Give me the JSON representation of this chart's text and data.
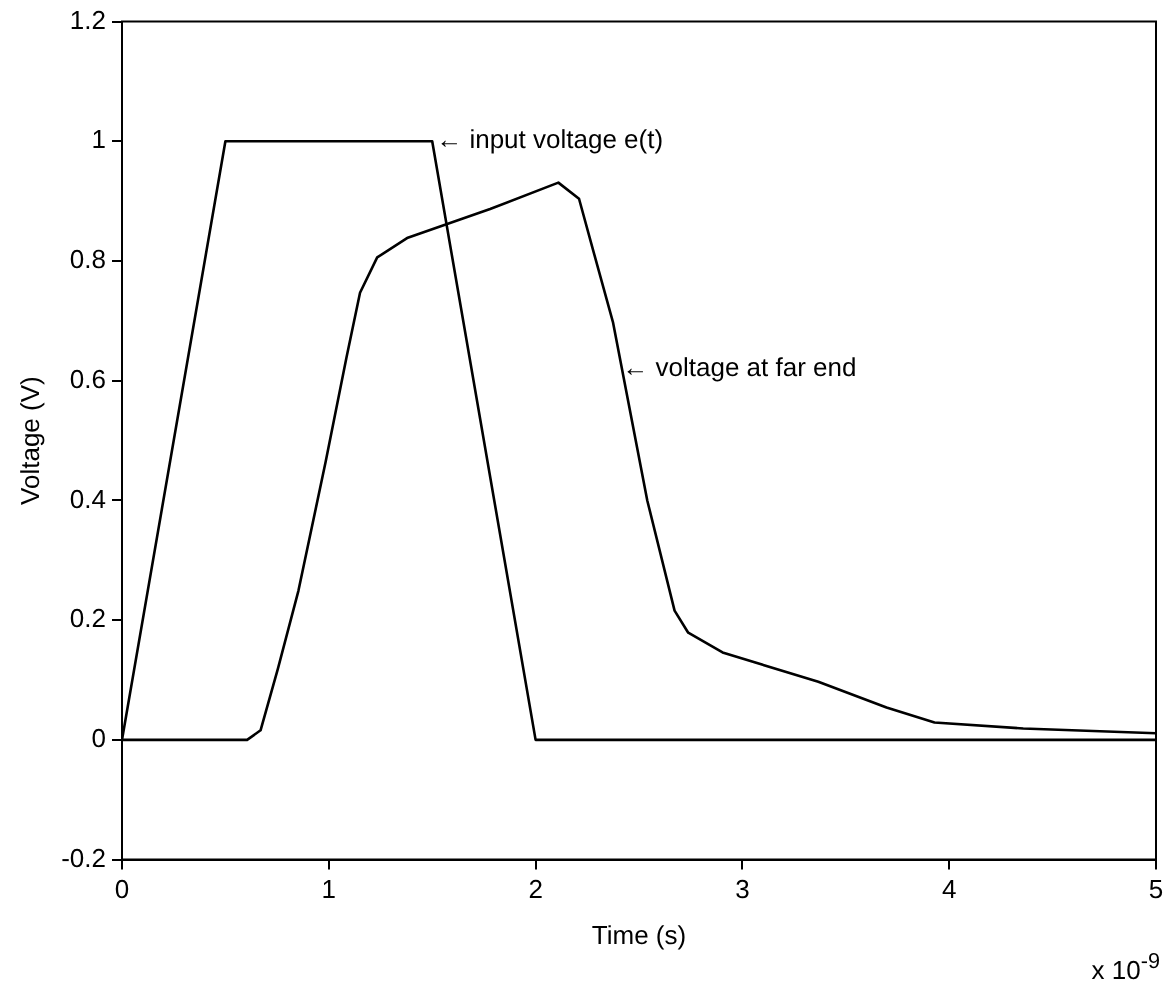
{
  "chart_data": {
    "type": "line",
    "xlabel": "Time (s)",
    "ylabel": "Voltage (V)",
    "xlim": [
      0,
      5
    ],
    "xticks": [
      0,
      1,
      2,
      3,
      4,
      5
    ],
    "ylim": [
      -0.2,
      1.2
    ],
    "yticks": [
      -0.2,
      0,
      0.2,
      0.4,
      0.6,
      0.8,
      1,
      1.2
    ],
    "grid": false,
    "legend": false,
    "marker": "none",
    "line_style": "solid",
    "series": [
      {
        "color": "#000000",
        "x": [
          0,
          0.5,
          1.5,
          2,
          5
        ],
        "values": [
          0,
          1,
          1,
          0,
          0
        ]
      },
      {
        "color": "#000000",
        "x": [
          0,
          0.605,
          0.67,
          0.754,
          0.853,
          0.985,
          1.085,
          1.151,
          1.234,
          1.382,
          1.78,
          2.11,
          2.21,
          2.275,
          2.374,
          2.54,
          2.672,
          2.738,
          2.904,
          3.367,
          3.697,
          3.929,
          4.358,
          5
        ],
        "values": [
          0,
          0,
          0.016,
          0.119,
          0.249,
          0.465,
          0.638,
          0.747,
          0.806,
          0.839,
          0.887,
          0.931,
          0.904,
          0.822,
          0.698,
          0.4,
          0.216,
          0.179,
          0.146,
          0.097,
          0.054,
          0.029,
          0.019,
          0.011
        ]
      }
    ],
    "annotations": [
      {
        "text": "← input voltage e(t)",
        "x": 1.5,
        "y": 1
      },
      {
        "text": "← voltage at far end",
        "x": 2.4,
        "y": 0.62
      },
      "x 10$^{-9}$"
    ]
  }
}
